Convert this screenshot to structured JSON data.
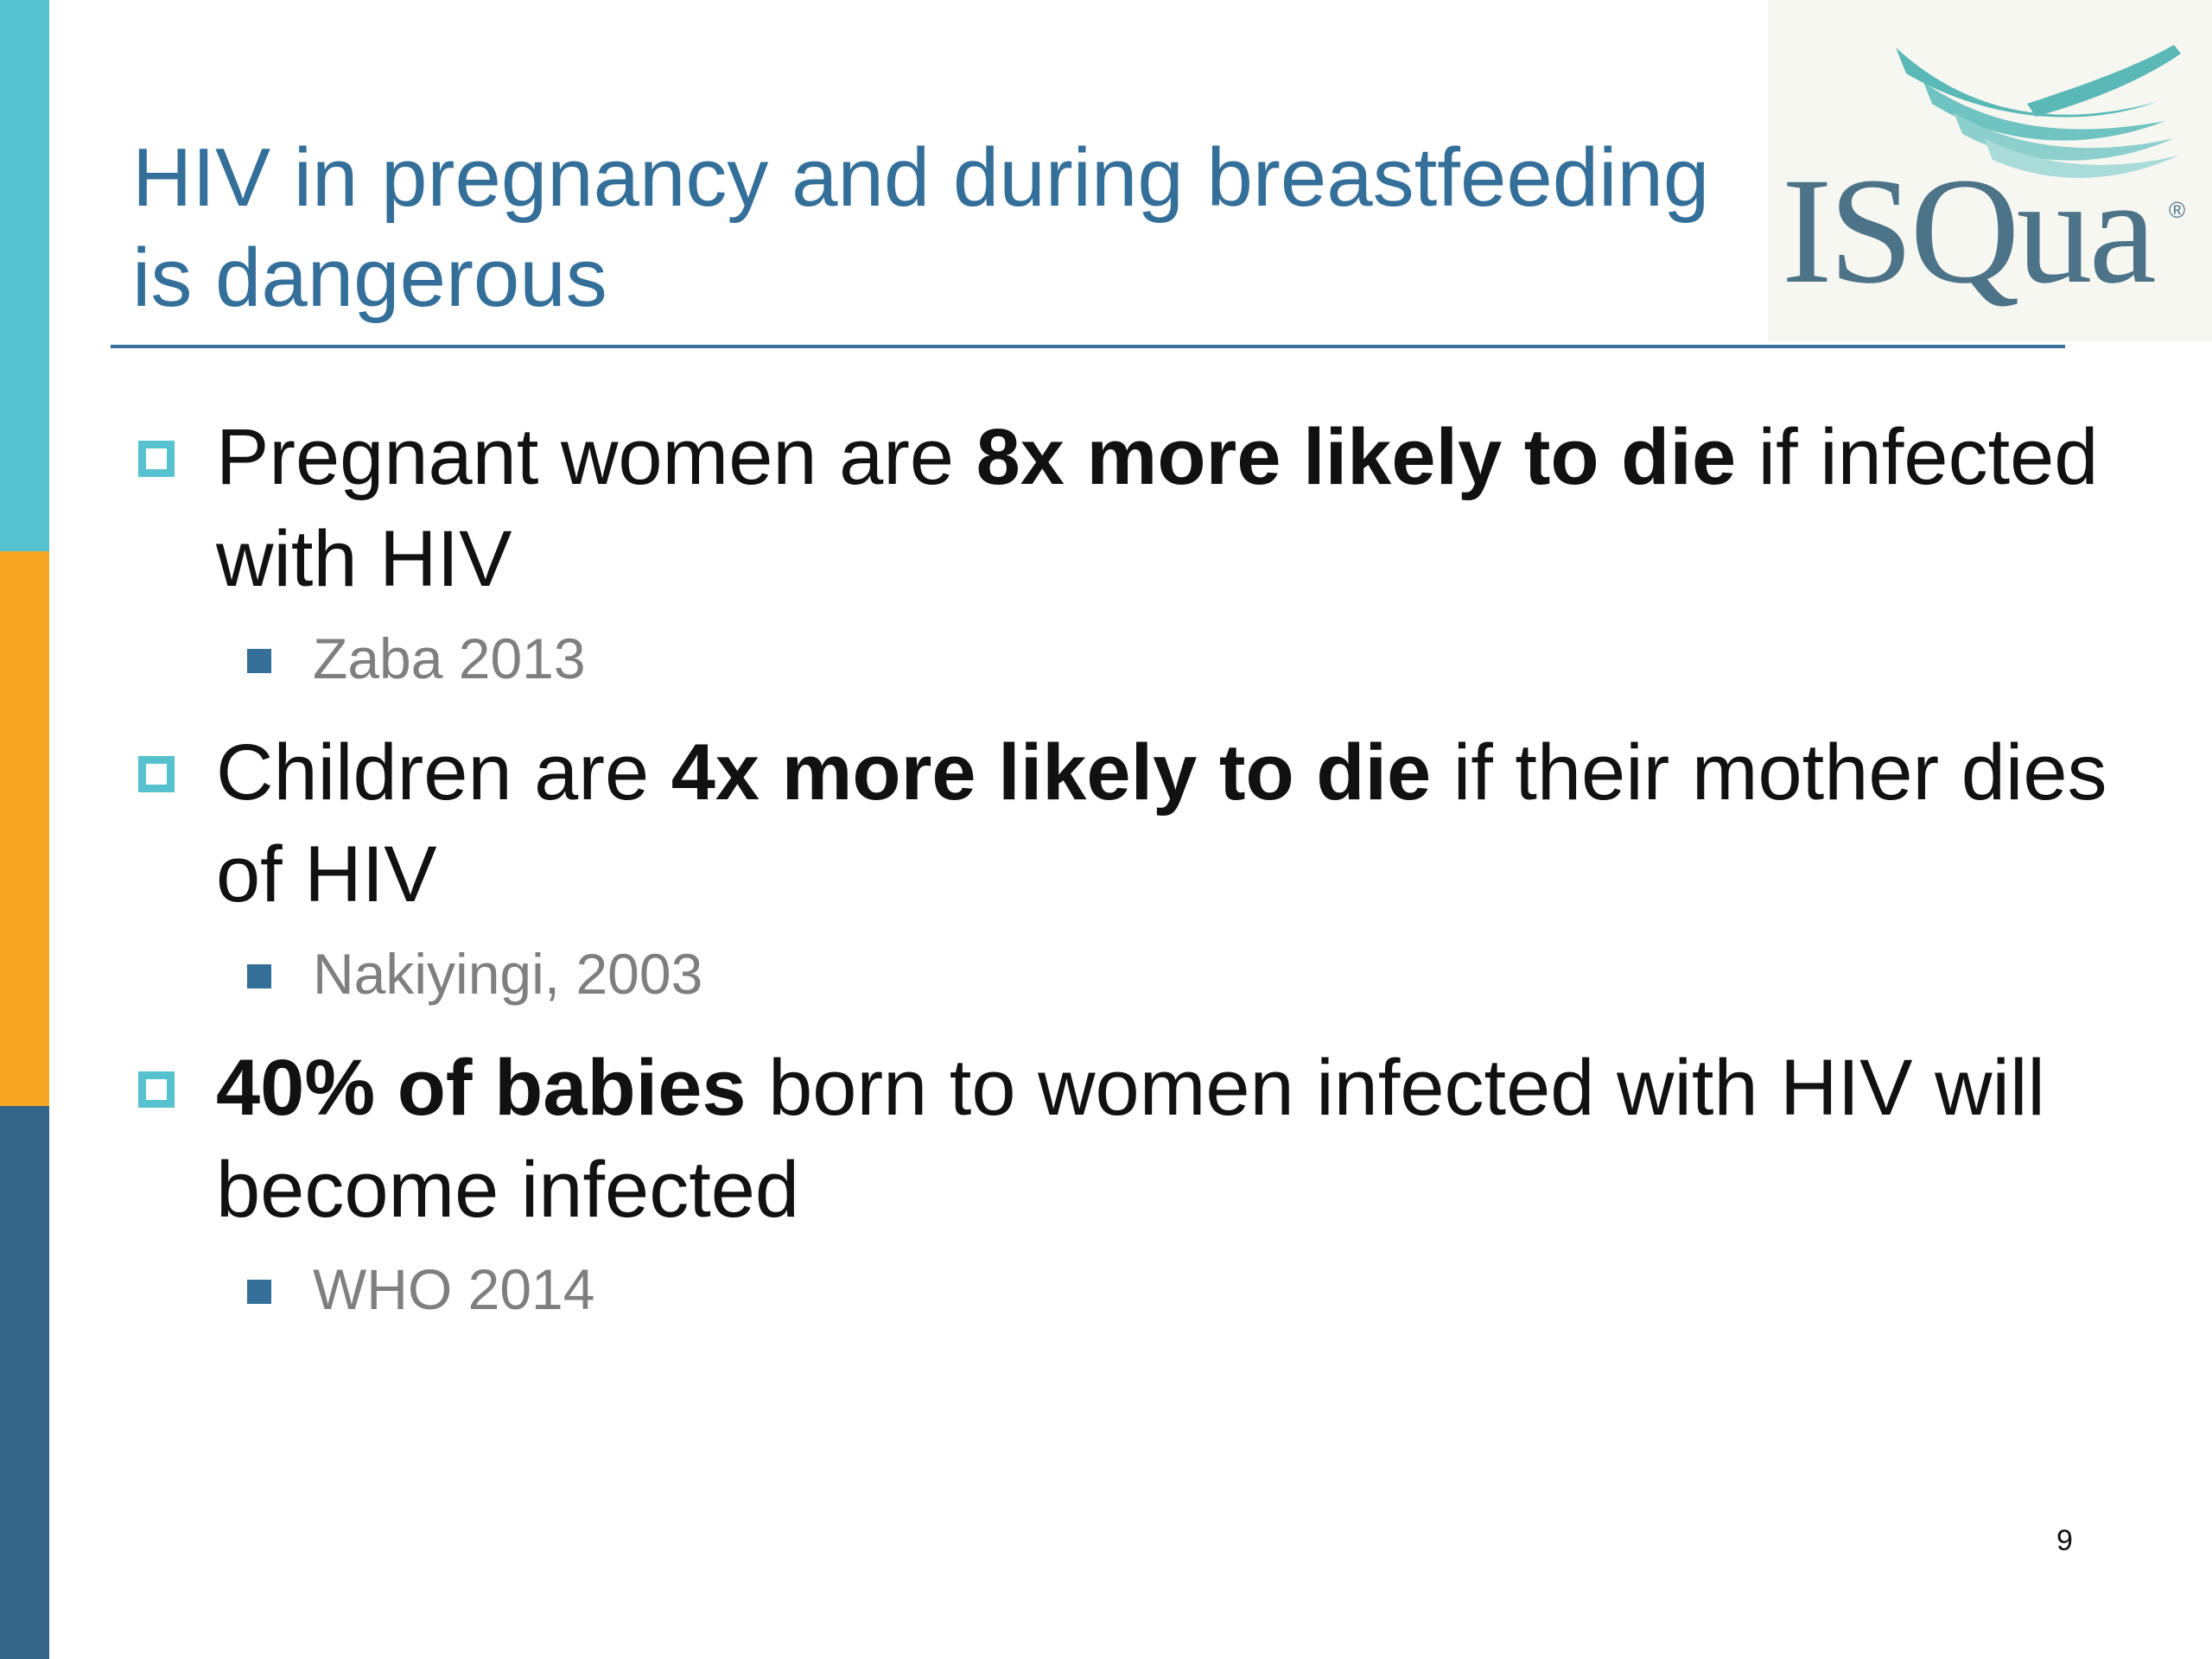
{
  "slide": {
    "title": "HIV in pregnancy and during breastfeeding is dangerous",
    "logo": {
      "text": "ISQua",
      "registered_mark": "®"
    },
    "bullets": [
      {
        "pre": "Pregnant women are ",
        "bold": "8x more likely to die",
        "post": " if infected with HIV",
        "source": "Zaba 2013"
      },
      {
        "pre": "Children are ",
        "bold": "4x more likely to die",
        "post": " if their mother dies of HIV",
        "source": "Nakiyingi, 2003"
      },
      {
        "pre": "",
        "bold": "40% of babies",
        "post": " born to women infected with HIV will become infected",
        "source": "WHO 2014"
      }
    ],
    "page_number": "9",
    "colors": {
      "title": "#346f9a",
      "teal_accent": "#56c2cf",
      "orange_accent": "#f6a623",
      "navy_accent": "#346588",
      "source_text": "#7f7f7f"
    }
  }
}
